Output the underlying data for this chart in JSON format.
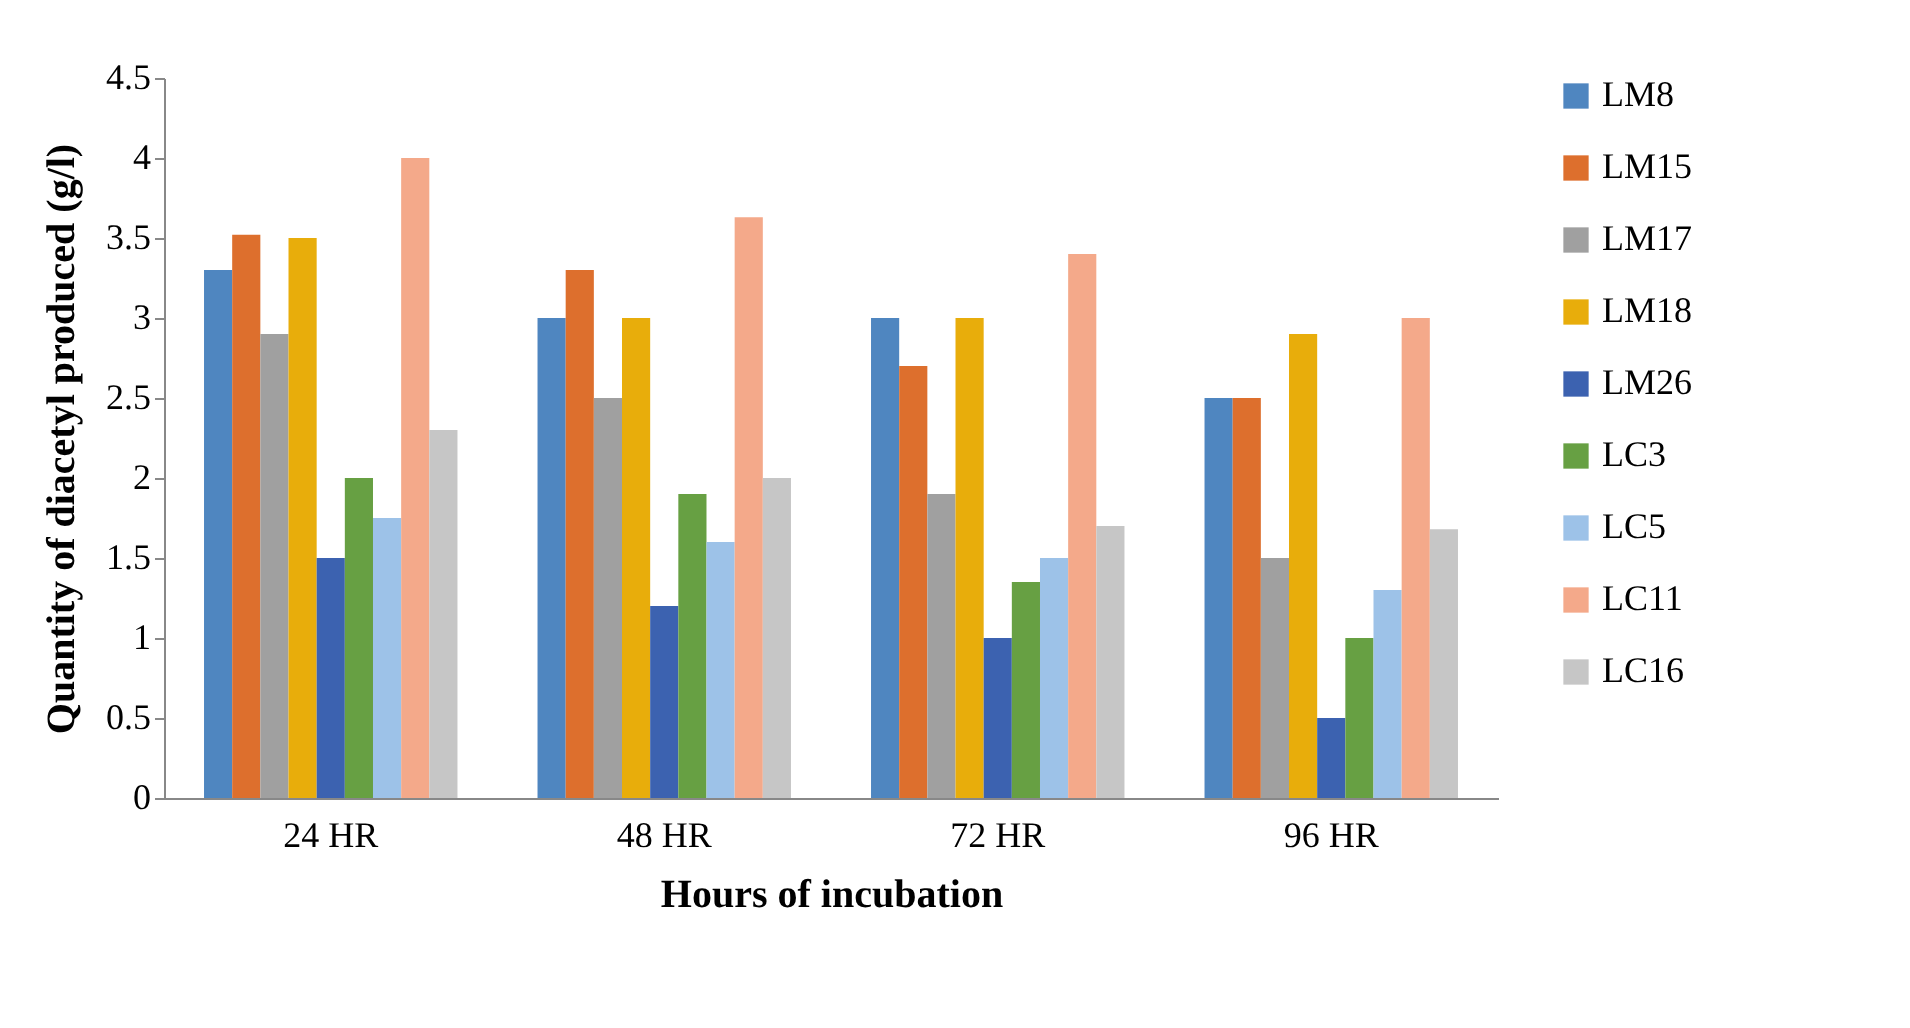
{
  "chart_data": {
    "type": "bar",
    "xlabel": "Hours of incubation",
    "ylabel": "Quantity of diacetyl  produced (g/l)",
    "categories": [
      "24 HR",
      "48 HR",
      "72 HR",
      "96 HR"
    ],
    "series": [
      {
        "name": "LM8",
        "color": "#4f86c0",
        "values": [
          3.3,
          3.0,
          3.0,
          2.5
        ]
      },
      {
        "name": "LM15",
        "color": "#dd6f2d",
        "values": [
          3.52,
          3.3,
          2.7,
          2.5
        ]
      },
      {
        "name": "LM17",
        "color": "#a0a0a0",
        "values": [
          2.9,
          2.5,
          1.9,
          1.5
        ]
      },
      {
        "name": "LM18",
        "color": "#e8ad0b",
        "values": [
          3.5,
          3.0,
          3.0,
          2.9
        ]
      },
      {
        "name": "LM26",
        "color": "#3c62b0",
        "values": [
          1.5,
          1.2,
          1.0,
          0.5
        ]
      },
      {
        "name": "LC3",
        "color": "#67a043",
        "values": [
          2.0,
          1.9,
          1.35,
          1.0
        ]
      },
      {
        "name": "LC5",
        "color": "#9dc2e8",
        "values": [
          1.75,
          1.6,
          1.5,
          1.3
        ]
      },
      {
        "name": "LC11",
        "color": "#f4a98a",
        "values": [
          4.0,
          3.63,
          3.4,
          3.0
        ]
      },
      {
        "name": "LC16",
        "color": "#c6c6c6",
        "values": [
          2.3,
          2.0,
          1.7,
          1.68
        ]
      }
    ],
    "ylim": [
      0,
      4.5
    ],
    "yticks": [
      0,
      0.5,
      1,
      1.5,
      2,
      2.5,
      3,
      3.5,
      4,
      4.5
    ],
    "grid": false,
    "legend": "right"
  }
}
